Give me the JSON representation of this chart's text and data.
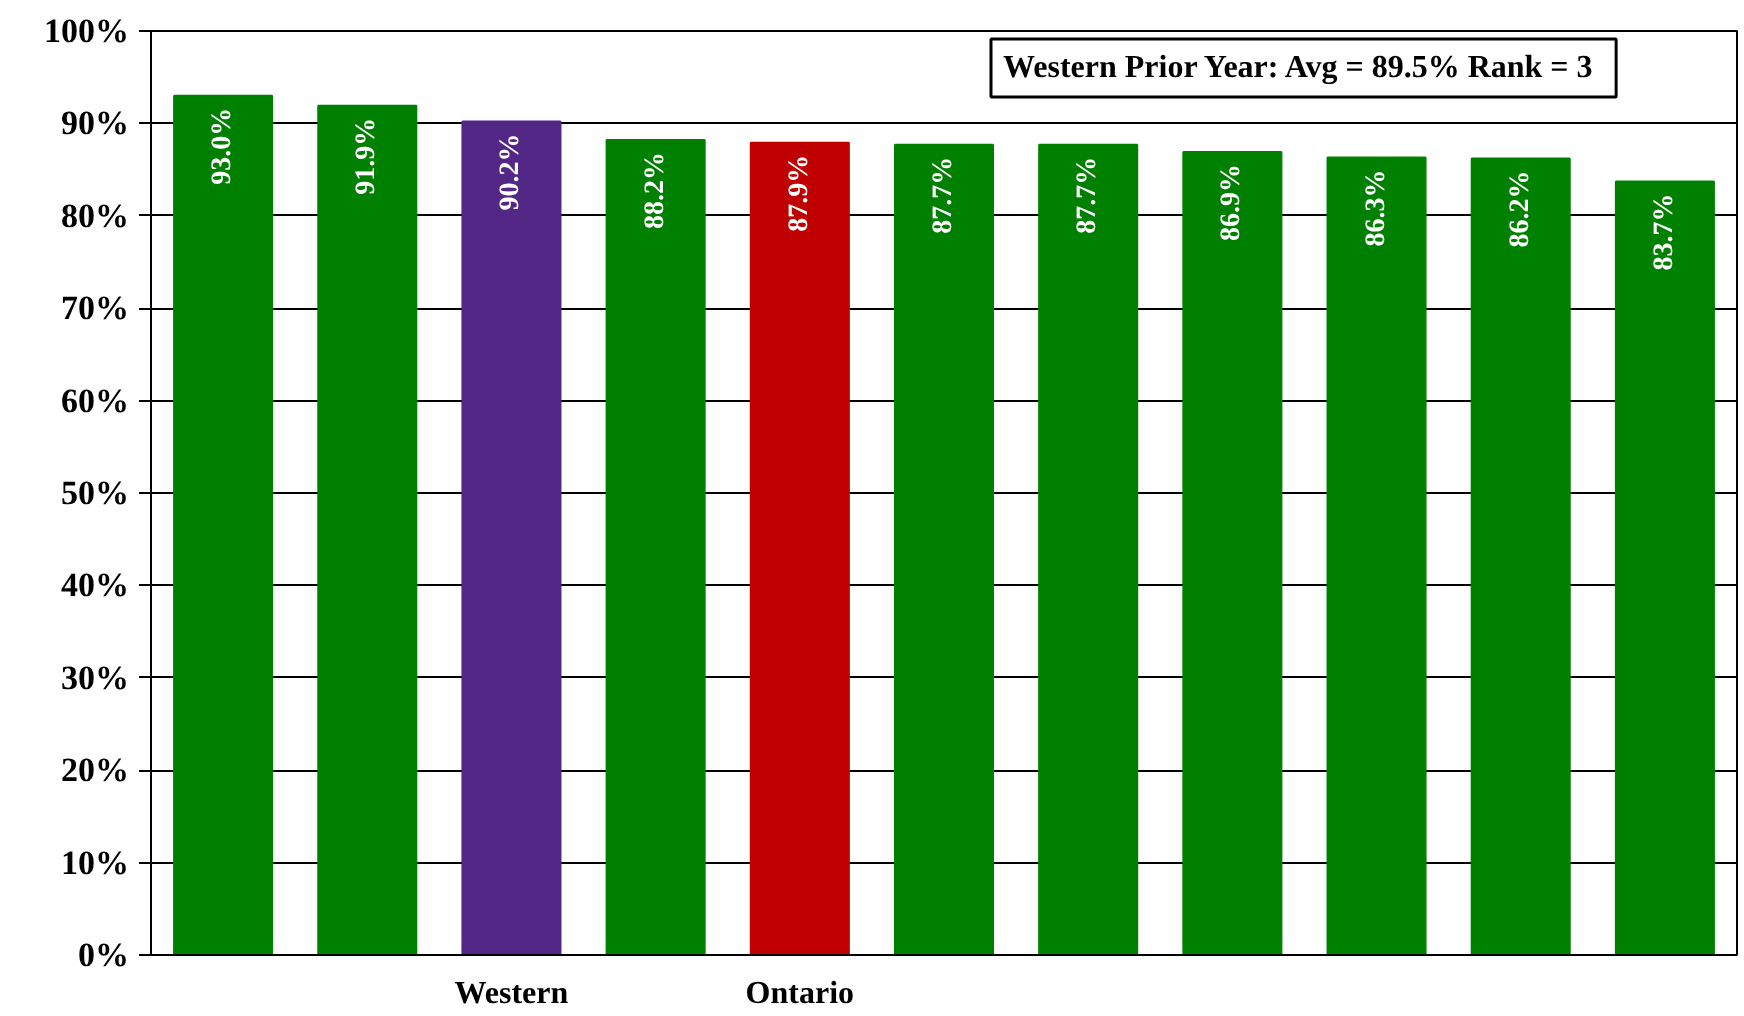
{
  "chart_data": {
    "type": "bar",
    "categories": [
      null,
      null,
      "Western",
      null,
      "Ontario",
      null,
      null,
      null,
      null,
      null,
      null
    ],
    "values": [
      93.0,
      91.9,
      90.2,
      88.2,
      87.9,
      87.7,
      87.7,
      86.9,
      86.3,
      86.2,
      83.7
    ],
    "colors": [
      "#008000",
      "#008000",
      "#532785",
      "#008000",
      "#c00000",
      "#008000",
      "#008000",
      "#008000",
      "#008000",
      "#008000",
      "#008000"
    ],
    "value_labels": [
      "93.0%",
      "91.9%",
      "90.2%",
      "88.2%",
      "87.9%",
      "87.7%",
      "87.7%",
      "86.9%",
      "86.3%",
      "86.2%",
      "83.7%"
    ],
    "ylim": [
      0,
      100
    ],
    "yticks": [
      {
        "value": 0,
        "label": "0%"
      },
      {
        "value": 10,
        "label": "10%"
      },
      {
        "value": 20,
        "label": "20%"
      },
      {
        "value": 30,
        "label": "30%"
      },
      {
        "value": 40,
        "label": "40%"
      },
      {
        "value": 50,
        "label": "50%"
      },
      {
        "value": 60,
        "label": "60%"
      },
      {
        "value": 70,
        "label": "70%"
      },
      {
        "value": 80,
        "label": "80%"
      },
      {
        "value": 90,
        "label": "90%"
      },
      {
        "value": 100,
        "label": "100%"
      }
    ],
    "grid": "y",
    "annotations": [
      "Western Prior Year: Avg = 89.5%  Rank = 3"
    ]
  }
}
